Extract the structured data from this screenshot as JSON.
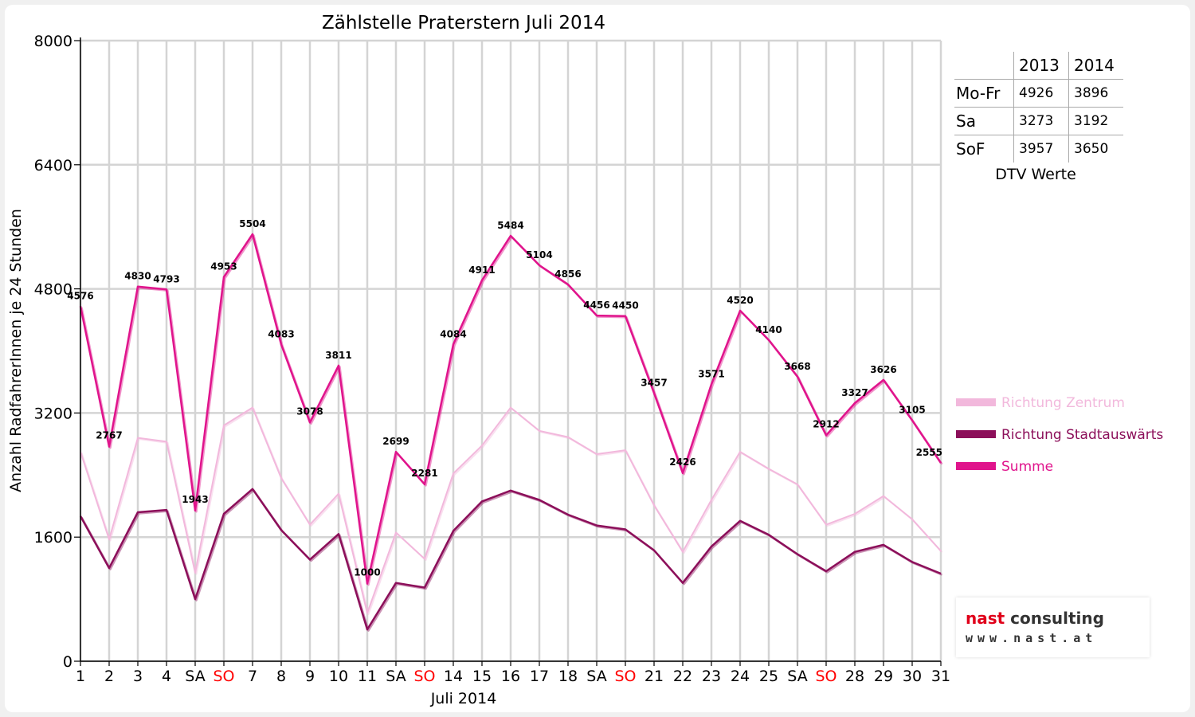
{
  "chart_data": {
    "type": "line",
    "title": "Zählstelle Praterstern Juli 2014",
    "xlabel": "Juli 2014",
    "ylabel": "Anzahl RadfahrerInnen je 24 Stunden",
    "ylim": [
      0,
      8000
    ],
    "yticks": [
      "0",
      "1600",
      "3200",
      "4800",
      "6400",
      "8000"
    ],
    "grid": true,
    "legend_position": "right",
    "categories": [
      "1",
      "2",
      "3",
      "4",
      "SA",
      "SO",
      "7",
      "8",
      "9",
      "10",
      "11",
      "SA",
      "SO",
      "14",
      "15",
      "16",
      "17",
      "18",
      "SA",
      "SO",
      "21",
      "22",
      "23",
      "24",
      "25",
      "SA",
      "SO",
      "28",
      "29",
      "30",
      "31"
    ],
    "highlight_categories": [
      "SO"
    ],
    "series": [
      {
        "name": "Richtung Zentrum",
        "color": "#f2b8dc",
        "values": [
          2700,
          1570,
          2880,
          2830,
          1140,
          3040,
          3270,
          2360,
          1760,
          2160,
          620,
          1660,
          1320,
          2420,
          2780,
          3270,
          2970,
          2890,
          2670,
          2720,
          2010,
          1410,
          2080,
          2700,
          2480,
          2280,
          1760,
          1900,
          2130,
          1830,
          1420
        ]
      },
      {
        "name": "Richtung Stadtauswärts",
        "color": "#8c0f5a",
        "values": [
          1870,
          1200,
          1920,
          1950,
          800,
          1900,
          2220,
          1690,
          1310,
          1640,
          410,
          1010,
          950,
          1680,
          2060,
          2200,
          2080,
          1890,
          1750,
          1700,
          1430,
          1010,
          1480,
          1810,
          1630,
          1380,
          1160,
          1410,
          1500,
          1280,
          1130
        ]
      },
      {
        "name": "Summe",
        "color": "#e0148c",
        "values": [
          4576,
          2767,
          4830,
          4793,
          1943,
          4953,
          5504,
          4083,
          3078,
          3811,
          1000,
          2699,
          2281,
          4084,
          4911,
          5484,
          5104,
          4856,
          4456,
          4450,
          3457,
          2426,
          3571,
          4520,
          4140,
          3668,
          2912,
          3327,
          3626,
          3105,
          2555
        ]
      }
    ],
    "data_labels": [
      "4576",
      "2767",
      "4830",
      "4793",
      "1943",
      "4953",
      "5504",
      "4083",
      "3078",
      "3811",
      "1000",
      "2699",
      "2281",
      "4084",
      "4911",
      "5484",
      "5104",
      "4856",
      "4456",
      "4450",
      "3457",
      "2426",
      "3571",
      "4520",
      "4140",
      "3668",
      "2912",
      "3327",
      "3626",
      "3105",
      "2555"
    ]
  },
  "dtv": {
    "headers": [
      "2013",
      "2014"
    ],
    "rows": [
      {
        "label": "Mo-Fr",
        "v2013": "4926",
        "v2014": "3896"
      },
      {
        "label": "Sa",
        "v2013": "3273",
        "v2014": "3192"
      },
      {
        "label": "SoF",
        "v2013": "3957",
        "v2014": "3650"
      }
    ],
    "caption": "DTV Werte"
  },
  "logo": {
    "name_accent": "nast",
    "name_rest": " consulting",
    "url": "www.nast.at"
  }
}
